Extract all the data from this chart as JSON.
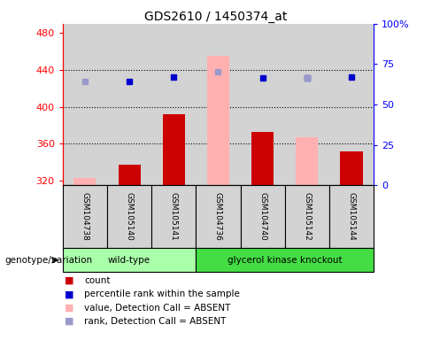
{
  "title": "GDS2610 / 1450374_at",
  "samples": [
    "GSM104738",
    "GSM105140",
    "GSM105141",
    "GSM104736",
    "GSM104740",
    "GSM105142",
    "GSM105144"
  ],
  "count_values": [
    null,
    337,
    392,
    null,
    373,
    null,
    352
  ],
  "count_absent_values": [
    323,
    null,
    null,
    455,
    null,
    367,
    null
  ],
  "percentile_rank": [
    null,
    428,
    432,
    null,
    431,
    431,
    432
  ],
  "percentile_rank_absent": [
    428,
    null,
    null,
    438,
    null,
    431,
    null
  ],
  "ylim_left": [
    315,
    490
  ],
  "ylim_right": [
    0,
    100
  ],
  "yticks_left": [
    320,
    360,
    400,
    440,
    480
  ],
  "yticks_right": [
    0,
    25,
    50,
    75,
    100
  ],
  "ytick_labels_right": [
    "0",
    "25",
    "50",
    "75",
    "100%"
  ],
  "bar_color_present": "#cc0000",
  "bar_color_absent": "#ffb0b0",
  "dot_color_present": "#0000cc",
  "dot_color_absent": "#9999cc",
  "wild_type_color": "#aaffaa",
  "knockout_color": "#44dd44",
  "plot_bg_color": "#d3d3d3",
  "legend_items": [
    {
      "label": "count",
      "color": "#cc0000"
    },
    {
      "label": "percentile rank within the sample",
      "color": "#0000cc"
    },
    {
      "label": "value, Detection Call = ABSENT",
      "color": "#ffb0b0"
    },
    {
      "label": "rank, Detection Call = ABSENT",
      "color": "#9999cc"
    }
  ],
  "wt_count": 3,
  "ko_count": 4,
  "grid_yticks": [
    360,
    400,
    440
  ],
  "bar_width": 0.5,
  "dot_size": 5
}
